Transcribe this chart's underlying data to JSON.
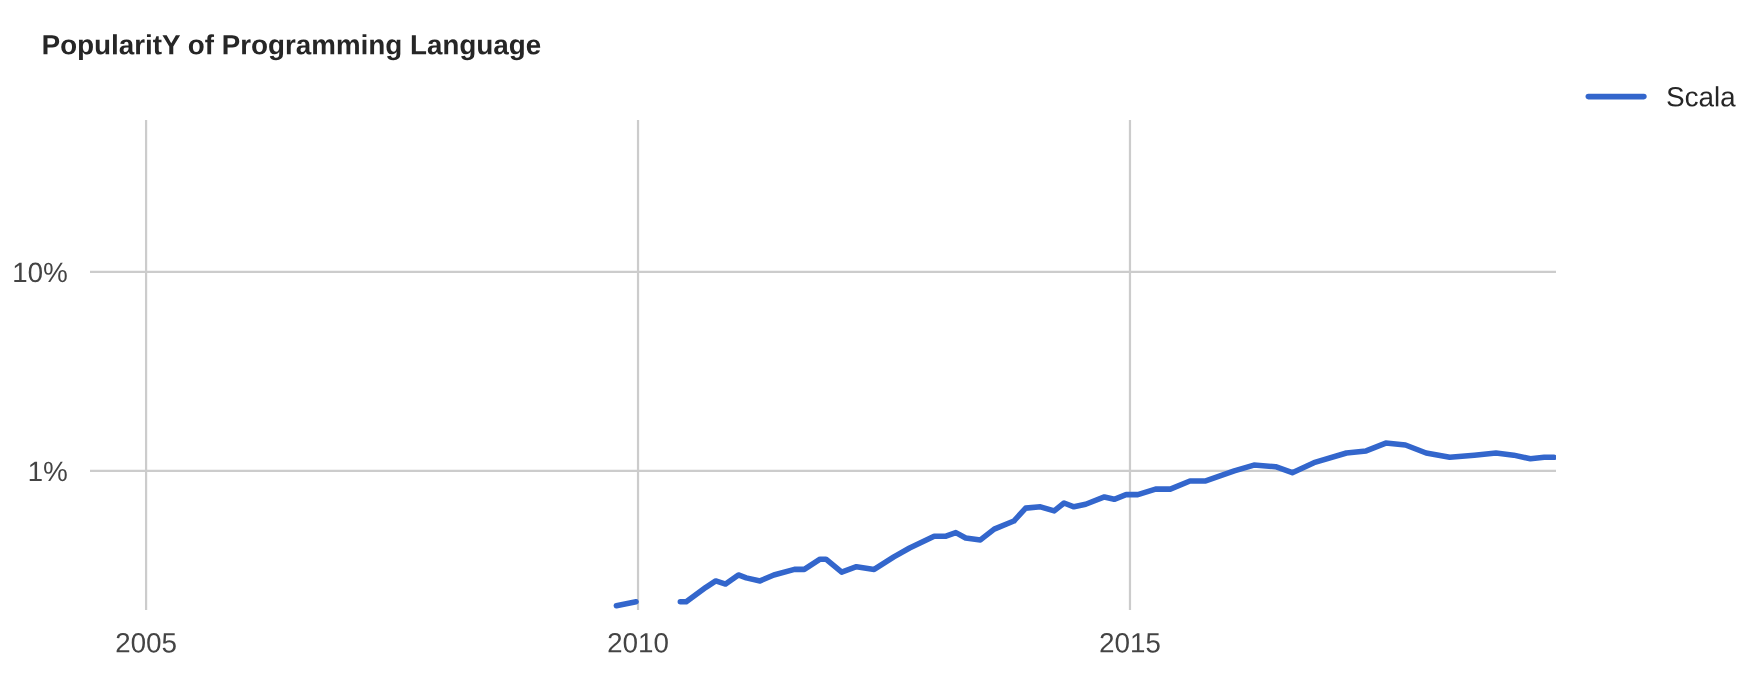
{
  "chart_data": {
    "type": "line",
    "title": "PopularitY of Programming Language",
    "x": [
      2009.78,
      2009.98,
      2010.15,
      2010.37,
      2010.43,
      2010.49,
      2010.69,
      2010.79,
      2010.89,
      2011.02,
      2011.1,
      2011.24,
      2011.38,
      2011.59,
      2011.69,
      2011.85,
      2011.91,
      2012.07,
      2012.22,
      2012.4,
      2012.6,
      2012.76,
      2013.01,
      2013.13,
      2013.23,
      2013.33,
      2013.48,
      2013.62,
      2013.82,
      2013.94,
      2014.09,
      2014.23,
      2014.33,
      2014.43,
      2014.55,
      2014.74,
      2014.84,
      2014.96,
      2015.08,
      2015.26,
      2015.41,
      2015.61,
      2015.77,
      2016.06,
      2016.26,
      2016.48,
      2016.65,
      2016.87,
      2017.2,
      2017.4,
      2017.6,
      2017.8,
      2018.01,
      2018.25,
      2018.5,
      2018.72,
      2018.9,
      2019.07,
      2019.21,
      2019.31
    ],
    "series": [
      {
        "name": "Scala",
        "color": "#3366cc",
        "values": [
          0.21,
          0.22,
          null,
          null,
          0.22,
          0.22,
          0.26,
          0.28,
          0.27,
          0.3,
          0.29,
          0.28,
          0.3,
          0.32,
          0.32,
          0.36,
          0.36,
          0.31,
          0.33,
          0.32,
          0.37,
          0.41,
          0.47,
          0.47,
          0.49,
          0.46,
          0.45,
          0.51,
          0.56,
          0.65,
          0.66,
          0.63,
          0.69,
          0.66,
          0.68,
          0.74,
          0.72,
          0.76,
          0.76,
          0.81,
          0.81,
          0.89,
          0.89,
          1.0,
          1.07,
          1.05,
          0.98,
          1.1,
          1.23,
          1.26,
          1.38,
          1.35,
          1.23,
          1.17,
          1.2,
          1.23,
          1.2,
          1.15,
          1.17,
          1.17
        ]
      }
    ],
    "xlim": [
      2004.43,
      2019.33
    ],
    "xticks": [
      2005,
      2010,
      2015
    ],
    "ylim": [
      0.2,
      58
    ],
    "yticks": [
      {
        "value": 1,
        "label": "1%"
      },
      {
        "value": 10,
        "label": "10%"
      }
    ],
    "log": "y",
    "grid": true,
    "legend": "top right",
    "marker": "none",
    "line_style": "solid"
  }
}
